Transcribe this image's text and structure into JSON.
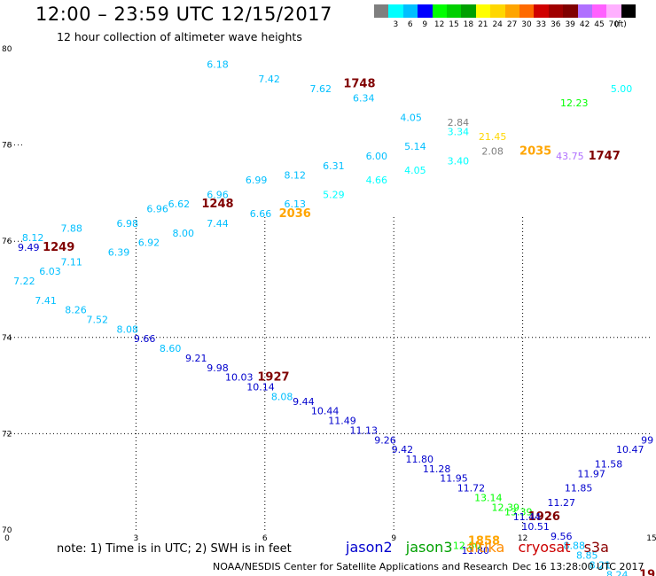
{
  "title": "12:00 – 23:59 UTC 12/15/2017",
  "subtitle": "12 hour collection of altimeter wave heights",
  "color_scale": {
    "unit": "(ft)",
    "stops": [
      {
        "label": "",
        "color": "#7f7f7f"
      },
      {
        "label": "3",
        "color": "#00ffff"
      },
      {
        "label": "6",
        "color": "#00bfff"
      },
      {
        "label": "9",
        "color": "#0000ff"
      },
      {
        "label": "12",
        "color": "#00ff00"
      },
      {
        "label": "15",
        "color": "#00d000"
      },
      {
        "label": "18",
        "color": "#00a000"
      },
      {
        "label": "21",
        "color": "#ffff00"
      },
      {
        "label": "24",
        "color": "#ffd700"
      },
      {
        "label": "27",
        "color": "#ffa500"
      },
      {
        "label": "30",
        "color": "#ff6a00"
      },
      {
        "label": "33",
        "color": "#d00000"
      },
      {
        "label": "36",
        "color": "#a00000"
      },
      {
        "label": "39",
        "color": "#800000"
      },
      {
        "label": "42",
        "color": "#b070ff"
      },
      {
        "label": "45",
        "color": "#ff60ff"
      },
      {
        "label": "70",
        "color": "#ffb0ff"
      },
      {
        "label": "",
        "color": "#000000"
      }
    ]
  },
  "note": "note: 1) Time is in UTC; 2) SWH is in feet",
  "satellites": [
    {
      "name": "jason2",
      "color": "#0000cd"
    },
    {
      "name": "jason3",
      "color": "#00a000"
    },
    {
      "name": "altika",
      "color": "#ff8c00"
    },
    {
      "name": "cryosat",
      "color": "#cc0000"
    },
    {
      "name": "s3a",
      "color": "#8b0000"
    }
  ],
  "credit": "NOAA/NESDIS Center for Satellite Applications and Research",
  "credit_time": "Dec 16 13:28:00 UTC 2017",
  "chart_data": {
    "type": "scatter",
    "x_axis": {
      "range": [
        0,
        15
      ],
      "ticks": [
        "0",
        "3",
        "6",
        "9",
        "12",
        "15"
      ]
    },
    "y_axis": {
      "range": [
        70,
        80
      ],
      "ticks": [
        "70",
        "72",
        "74",
        "76",
        "78",
        "80"
      ]
    },
    "grid": "dotted at 3-unit intervals",
    "labels": [
      {
        "x": 4.9,
        "y": 79.6,
        "text": "6.18",
        "color": "#00bfff"
      },
      {
        "x": 6.1,
        "y": 79.3,
        "text": "7.42",
        "color": "#00bfff"
      },
      {
        "x": 7.3,
        "y": 79.1,
        "text": "7.62",
        "color": "#00bfff"
      },
      {
        "x": 8.2,
        "y": 79.2,
        "text": "1748",
        "color": "#800000",
        "bold": true
      },
      {
        "x": 8.3,
        "y": 78.9,
        "text": "6.34",
        "color": "#00bfff"
      },
      {
        "x": 9.4,
        "y": 78.5,
        "text": "4.05",
        "color": "#00bfff"
      },
      {
        "x": 10.5,
        "y": 78.4,
        "text": "2.84",
        "color": "#7f7f7f"
      },
      {
        "x": 10.5,
        "y": 78.2,
        "text": "3.34",
        "color": "#00ffff"
      },
      {
        "x": 9.5,
        "y": 77.9,
        "text": "5.14",
        "color": "#00bfff"
      },
      {
        "x": 11.3,
        "y": 78.1,
        "text": "21.45",
        "color": "#ffd700"
      },
      {
        "x": 11.3,
        "y": 77.8,
        "text": "2.08",
        "color": "#7f7f7f"
      },
      {
        "x": 12.3,
        "y": 77.8,
        "text": "2035",
        "color": "#ffa500",
        "bold": true
      },
      {
        "x": 13.1,
        "y": 77.7,
        "text": "43.75",
        "color": "#b070ff"
      },
      {
        "x": 13.9,
        "y": 77.7,
        "text": "1747",
        "color": "#800000",
        "bold": true
      },
      {
        "x": 13.2,
        "y": 78.8,
        "text": "12.23",
        "color": "#00ff00"
      },
      {
        "x": 14.3,
        "y": 79.1,
        "text": "5.00",
        "color": "#00ffff"
      },
      {
        "x": 8.6,
        "y": 77.7,
        "text": "6.00",
        "color": "#00bfff"
      },
      {
        "x": 7.6,
        "y": 77.5,
        "text": "6.31",
        "color": "#00bfff"
      },
      {
        "x": 9.5,
        "y": 77.4,
        "text": "4.05",
        "color": "#00ffff"
      },
      {
        "x": 10.5,
        "y": 77.6,
        "text": "3.40",
        "color": "#00ffff"
      },
      {
        "x": 6.7,
        "y": 77.3,
        "text": "8.12",
        "color": "#00bfff"
      },
      {
        "x": 8.6,
        "y": 77.2,
        "text": "4.66",
        "color": "#00ffff"
      },
      {
        "x": 5.8,
        "y": 77.2,
        "text": "6.99",
        "color": "#00bfff"
      },
      {
        "x": 7.6,
        "y": 76.9,
        "text": "5.29",
        "color": "#00ffff"
      },
      {
        "x": 4.9,
        "y": 76.9,
        "text": "6.96",
        "color": "#00bfff"
      },
      {
        "x": 4.0,
        "y": 76.7,
        "text": "6.62",
        "color": "#00bfff"
      },
      {
        "x": 4.9,
        "y": 76.7,
        "text": "1248",
        "color": "#800000",
        "bold": true
      },
      {
        "x": 3.5,
        "y": 76.6,
        "text": "6.96",
        "color": "#00bfff"
      },
      {
        "x": 6.7,
        "y": 76.7,
        "text": "6.13",
        "color": "#00bfff"
      },
      {
        "x": 6.7,
        "y": 76.5,
        "text": "2036",
        "color": "#ffa500",
        "bold": true
      },
      {
        "x": 5.9,
        "y": 76.5,
        "text": "6.66",
        "color": "#00bfff"
      },
      {
        "x": 2.8,
        "y": 76.3,
        "text": "6.98",
        "color": "#00bfff"
      },
      {
        "x": 4.9,
        "y": 76.3,
        "text": "7.44",
        "color": "#00bfff"
      },
      {
        "x": 1.5,
        "y": 76.2,
        "text": "7.88",
        "color": "#00bfff"
      },
      {
        "x": 4.1,
        "y": 76.1,
        "text": "8.00",
        "color": "#00bfff"
      },
      {
        "x": 0.6,
        "y": 76.0,
        "text": "8.12",
        "color": "#00bfff"
      },
      {
        "x": 3.3,
        "y": 75.9,
        "text": "6.92",
        "color": "#00bfff"
      },
      {
        "x": 0.5,
        "y": 75.8,
        "text": "9.49",
        "color": "#0000cd"
      },
      {
        "x": 1.2,
        "y": 75.8,
        "text": "1249",
        "color": "#800000",
        "bold": true
      },
      {
        "x": 2.6,
        "y": 75.7,
        "text": "6.39",
        "color": "#00bfff"
      },
      {
        "x": 1.5,
        "y": 75.5,
        "text": "7.11",
        "color": "#00bfff"
      },
      {
        "x": 1.0,
        "y": 75.3,
        "text": "6.03",
        "color": "#00bfff"
      },
      {
        "x": 0.4,
        "y": 75.1,
        "text": "7.22",
        "color": "#00bfff"
      },
      {
        "x": 0.9,
        "y": 74.7,
        "text": "7.41",
        "color": "#00bfff"
      },
      {
        "x": 1.6,
        "y": 74.5,
        "text": "8.26",
        "color": "#00bfff"
      },
      {
        "x": 2.1,
        "y": 74.3,
        "text": "7.52",
        "color": "#00bfff"
      },
      {
        "x": 2.8,
        "y": 74.1,
        "text": "8.08",
        "color": "#00bfff"
      },
      {
        "x": 3.2,
        "y": 73.9,
        "text": "9.66",
        "color": "#0000cd"
      },
      {
        "x": 3.8,
        "y": 73.7,
        "text": "8.60",
        "color": "#00bfff"
      },
      {
        "x": 4.4,
        "y": 73.5,
        "text": "9.21",
        "color": "#0000cd"
      },
      {
        "x": 4.9,
        "y": 73.3,
        "text": "9.98",
        "color": "#0000cd"
      },
      {
        "x": 5.4,
        "y": 73.1,
        "text": "10.03",
        "color": "#0000cd"
      },
      {
        "x": 6.2,
        "y": 73.1,
        "text": "1927",
        "color": "#800000",
        "bold": true
      },
      {
        "x": 5.9,
        "y": 72.9,
        "text": "10.14",
        "color": "#0000cd"
      },
      {
        "x": 6.4,
        "y": 72.7,
        "text": "8.08",
        "color": "#00bfff"
      },
      {
        "x": 6.9,
        "y": 72.6,
        "text": "9.44",
        "color": "#0000cd"
      },
      {
        "x": 7.4,
        "y": 72.4,
        "text": "10.44",
        "color": "#0000cd"
      },
      {
        "x": 7.8,
        "y": 72.2,
        "text": "11.49",
        "color": "#0000cd"
      },
      {
        "x": 8.3,
        "y": 72.0,
        "text": "11.13",
        "color": "#0000cd"
      },
      {
        "x": 8.8,
        "y": 71.8,
        "text": "9.26",
        "color": "#0000cd"
      },
      {
        "x": 9.2,
        "y": 71.6,
        "text": "9.42",
        "color": "#0000cd"
      },
      {
        "x": 9.6,
        "y": 71.4,
        "text": "11.80",
        "color": "#0000cd"
      },
      {
        "x": 10.0,
        "y": 71.2,
        "text": "11.28",
        "color": "#0000cd"
      },
      {
        "x": 10.4,
        "y": 71.0,
        "text": "11.95",
        "color": "#0000cd"
      },
      {
        "x": 10.8,
        "y": 70.8,
        "text": "11.72",
        "color": "#0000cd"
      },
      {
        "x": 11.2,
        "y": 70.6,
        "text": "13.14",
        "color": "#00ff00"
      },
      {
        "x": 11.6,
        "y": 70.4,
        "text": "12.39",
        "color": "#00ff00"
      },
      {
        "x": 11.9,
        "y": 70.3,
        "text": "13.39",
        "color": "#00ff00"
      },
      {
        "x": 12.5,
        "y": 70.2,
        "text": "1926",
        "color": "#800000",
        "bold": true
      },
      {
        "x": 12.1,
        "y": 70.2,
        "text": "11.44",
        "color": "#0000cd"
      },
      {
        "x": 12.3,
        "y": 70.0,
        "text": "10.51",
        "color": "#0000cd"
      },
      {
        "x": 12.9,
        "y": 69.8,
        "text": "9.56",
        "color": "#0000cd"
      },
      {
        "x": 13.2,
        "y": 69.6,
        "text": "8.88",
        "color": "#00bfff"
      },
      {
        "x": 13.5,
        "y": 69.4,
        "text": "8.85",
        "color": "#00bfff"
      },
      {
        "x": 13.8,
        "y": 69.2,
        "text": "8.21",
        "color": "#00bfff"
      },
      {
        "x": 14.2,
        "y": 69.0,
        "text": "8.24",
        "color": "#00bfff"
      },
      {
        "x": 14.9,
        "y": 69.0,
        "text": "19",
        "color": "#8b0000",
        "bold": true
      },
      {
        "x": 12.9,
        "y": 70.5,
        "text": "11.27",
        "color": "#0000cd"
      },
      {
        "x": 13.3,
        "y": 70.8,
        "text": "11.85",
        "color": "#0000cd"
      },
      {
        "x": 13.6,
        "y": 71.1,
        "text": "11.97",
        "color": "#0000cd"
      },
      {
        "x": 14.0,
        "y": 71.3,
        "text": "11.58",
        "color": "#0000cd"
      },
      {
        "x": 14.5,
        "y": 71.6,
        "text": "10.47",
        "color": "#0000cd"
      },
      {
        "x": 14.9,
        "y": 71.8,
        "text": "99",
        "color": "#0000cd"
      },
      {
        "x": 10.9,
        "y": 69.5,
        "text": "11.80",
        "color": "#0000cd"
      },
      {
        "x": 10.7,
        "y": 69.6,
        "text": "12.80",
        "color": "#00ff00"
      },
      {
        "x": 11.1,
        "y": 69.7,
        "text": "1858",
        "color": "#ffa500",
        "bold": true
      }
    ]
  }
}
